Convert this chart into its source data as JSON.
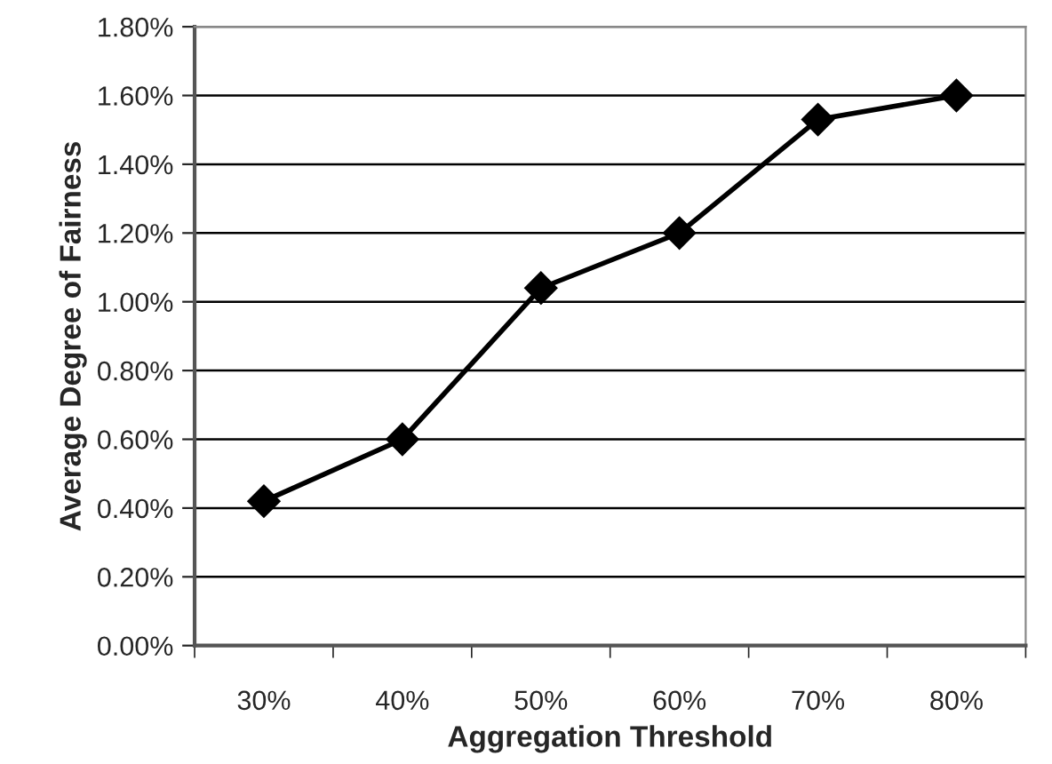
{
  "chart_data": {
    "type": "line",
    "xlabel": "Aggregation Threshold",
    "ylabel": "Average Degree of Fairness",
    "categories": [
      "30%",
      "40%",
      "50%",
      "60%",
      "70%",
      "80%"
    ],
    "series": [
      {
        "color": "#000000",
        "values": [
          0.42,
          0.6,
          1.04,
          1.2,
          1.53,
          1.6
        ]
      }
    ],
    "ylim": [
      0,
      1.8
    ],
    "yticks": [
      {
        "value": 0,
        "label": "0.00%"
      },
      {
        "value": 0.2,
        "label": "0.20%"
      },
      {
        "value": 0.4,
        "label": "0.40%"
      },
      {
        "value": 0.6,
        "label": "0.60%"
      },
      {
        "value": 0.8,
        "label": "0.80%"
      },
      {
        "value": 1.0,
        "label": "1.00%"
      },
      {
        "value": 1.2,
        "label": "1.20%"
      },
      {
        "value": 1.4,
        "label": "1.40%"
      },
      {
        "value": 1.6,
        "label": "1.60%"
      },
      {
        "value": 1.8,
        "label": "1.80%"
      }
    ],
    "grid": "y",
    "marker": "diamond",
    "line_style": "solid",
    "legend": false
  }
}
